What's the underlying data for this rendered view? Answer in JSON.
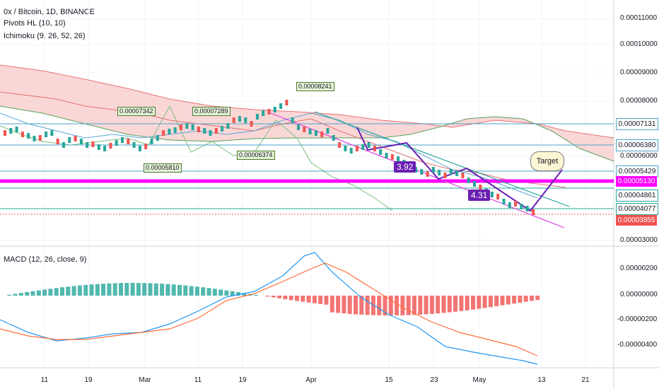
{
  "legend": {
    "title": "0x / Bitcoin, 1D, BINANCE",
    "pivots": "Pivots HL (10, 10)",
    "ichimoku": "Ichimoku (9, 26, 52, 26)",
    "macd": "MACD (12, 26, close, 9)"
  },
  "price_axis": [
    "0.00011000",
    "0.00010000",
    "0.00009000",
    "0.00008000",
    "0.00006000",
    "0.00003000"
  ],
  "price_tags": [
    {
      "text": "0.00007131",
      "bg": "#ffffff",
      "border": "#4aa3c8"
    },
    {
      "text": "0.00006380",
      "bg": "#ffffff",
      "border": "#4aa3c8"
    },
    {
      "text": "0.00005429",
      "bg": "#ffffff",
      "border": "#4aa3c8"
    },
    {
      "text": "0.00005130",
      "bg": "#ff00ff",
      "border": "#ff00ff"
    },
    {
      "text": "0.00004861",
      "bg": "#ffffff",
      "border": "#26a69a"
    },
    {
      "text": "0.00004077",
      "bg": "#ffffff",
      "border": "#26a69a"
    },
    {
      "text": "0.00003855",
      "bg": "#ef5350",
      "border": "#ef5350"
    }
  ],
  "macd_axis": [
    "0.00000200",
    "0.00000000",
    "-0.00000200",
    "-0.00000400"
  ],
  "time_axis": [
    "11",
    "19",
    "Mar",
    "11",
    "19",
    "Apr",
    "15",
    "23",
    "May",
    "13",
    "21"
  ],
  "pivot_labels": [
    "0.00007342",
    "0.00007289",
    "0.00008241",
    "0.00005810",
    "0.00006374"
  ],
  "wave_labels": [
    "3.92",
    "4.31"
  ],
  "target_label": "Target",
  "colors": {
    "up": "#26a69a",
    "down": "#ef5350",
    "macd": "#2196f3",
    "signal": "#ff6d3a",
    "highlight": "#ff00ff"
  }
}
